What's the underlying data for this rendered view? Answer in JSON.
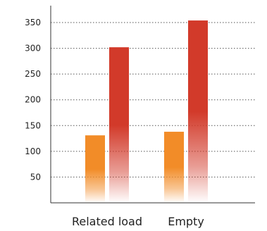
{
  "chart_data": {
    "type": "bar",
    "categories": [
      "Related load",
      "Empty"
    ],
    "series": [
      {
        "values": [
          131,
          138
        ],
        "color": "#f28c28"
      },
      {
        "values": [
          302,
          354
        ],
        "color": "#d23a2a"
      }
    ],
    "yticks": [
      50,
      100,
      150,
      200,
      250,
      300,
      350
    ],
    "ylim": [
      0,
      380
    ],
    "grid": true,
    "grid_style": "dotted",
    "legend": "none",
    "bar_fill": "gradient fading to white at base"
  }
}
